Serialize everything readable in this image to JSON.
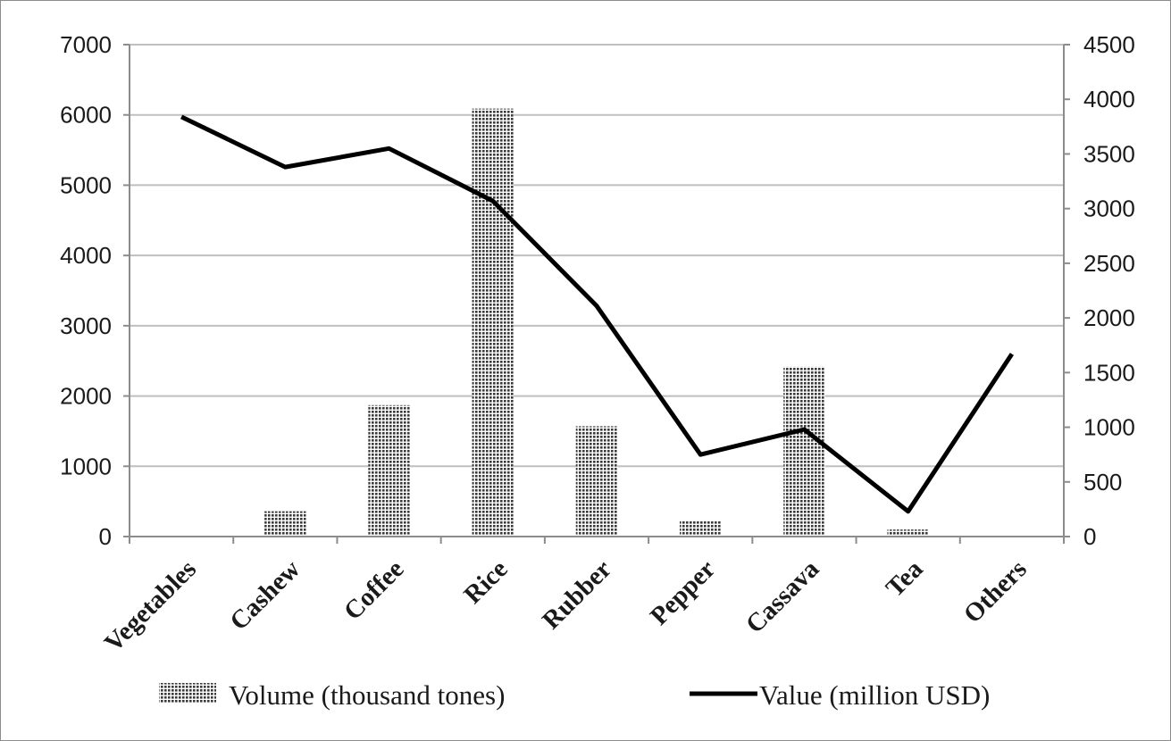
{
  "chart_data": {
    "type": "bar+line",
    "categories": [
      "Vegetables",
      "Cashew",
      "Coffee",
      "Rice",
      "Rubber",
      "Pepper",
      "Cassava",
      "Tea",
      "Others"
    ],
    "series": [
      {
        "name": "Volume (thousand tones)",
        "type": "bar",
        "axis": "left",
        "values": [
          null,
          360,
          1870,
          6090,
          1570,
          230,
          2420,
          100,
          null
        ]
      },
      {
        "name": "Value (million USD)",
        "type": "line",
        "axis": "right",
        "values": [
          3840,
          3380,
          3550,
          3070,
          2110,
          750,
          980,
          230,
          1670
        ]
      }
    ],
    "ylim_left": [
      0,
      7000
    ],
    "yticks_left": [
      "0",
      "1000",
      "2000",
      "3000",
      "4000",
      "5000",
      "6000",
      "7000"
    ],
    "ylim_right": [
      0,
      4500
    ],
    "yticks_right": [
      "0",
      "500",
      "1000",
      "1500",
      "2000",
      "2500",
      "3000",
      "3500",
      "4000",
      "4500"
    ],
    "grid": "horizontal",
    "legend_position": "bottom",
    "colors": {
      "bar_pattern": "#3a3a3a",
      "line": "#000000",
      "grid": "#bfbfbf"
    }
  }
}
